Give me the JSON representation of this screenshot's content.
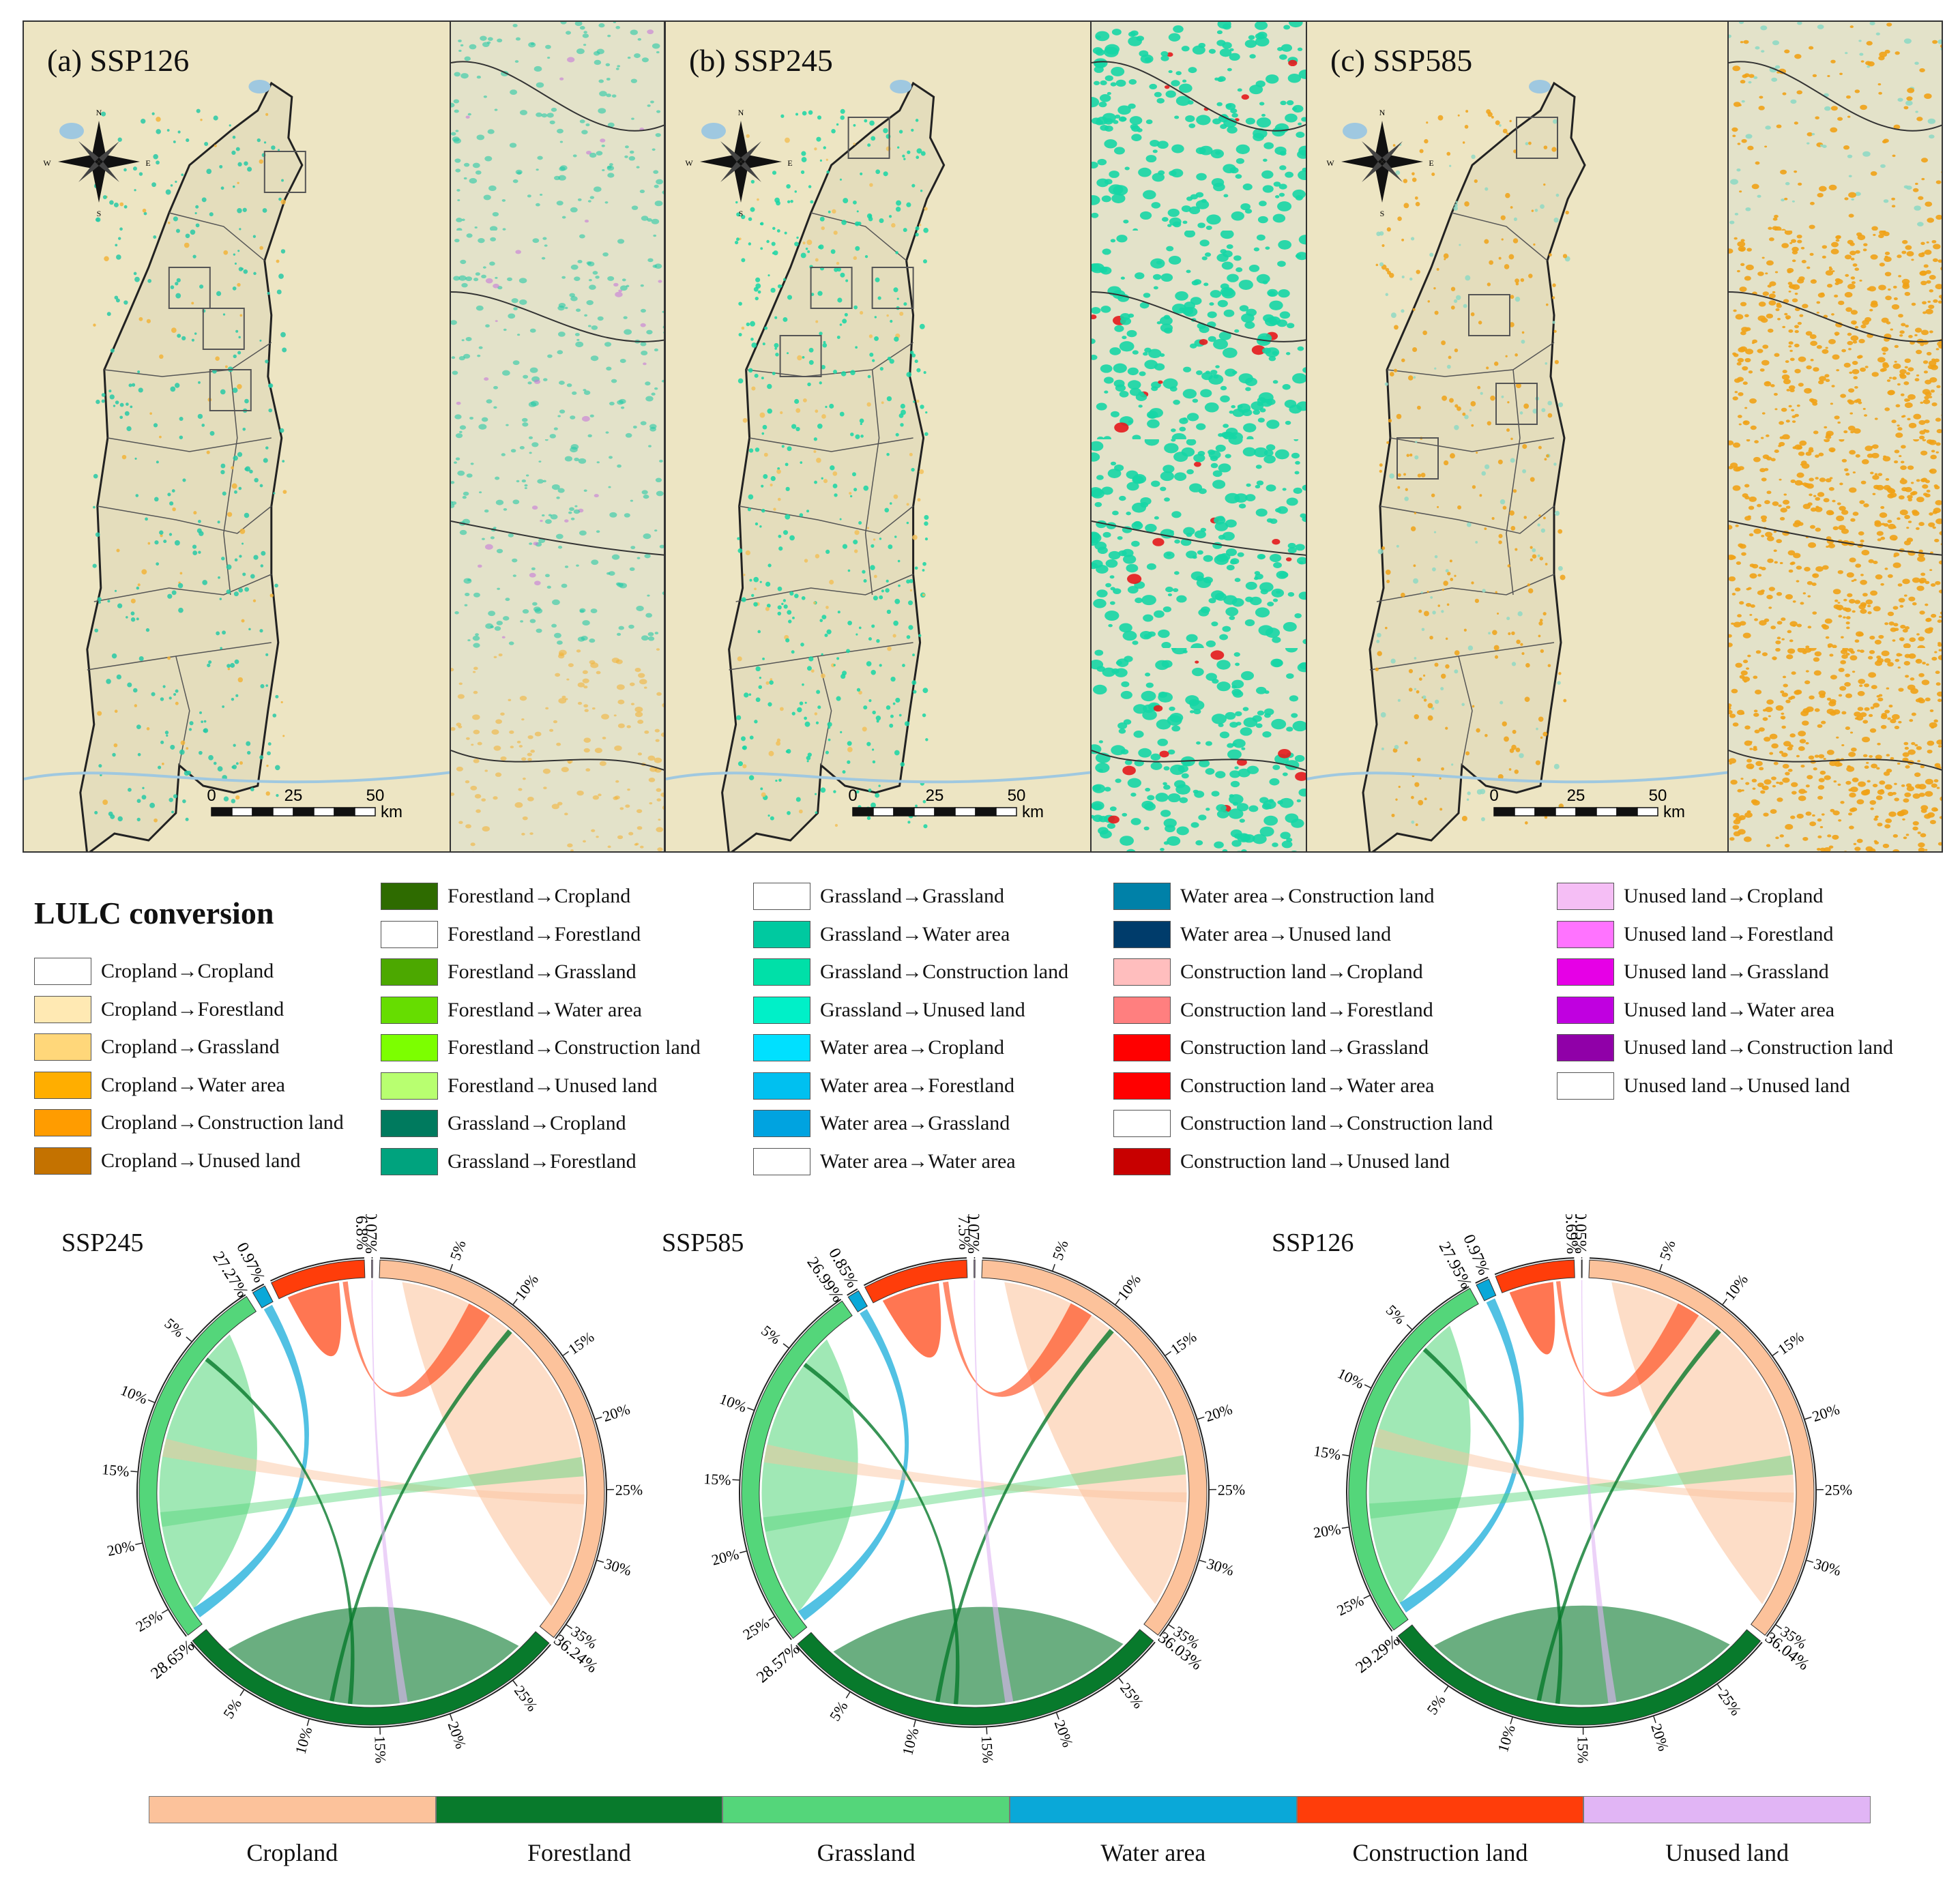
{
  "maps": [
    {
      "title": "(a) SSP126",
      "accent": "#27c9a6",
      "secondary": "#f2b43a",
      "hotspot": "#c77ad8"
    },
    {
      "title": "(b) SSP245",
      "accent": "#16d6a5",
      "secondary": "#f2c15a",
      "hotspot": "#e31a1c"
    },
    {
      "title": "(c) SSP585",
      "accent": "#8fd9c4",
      "secondary": "#f0a216",
      "hotspot": "#f0a216"
    }
  ],
  "scalebar": {
    "ticks": [
      "0",
      "25",
      "50"
    ],
    "unit": "km"
  },
  "compass": {
    "n": "N",
    "s": "S",
    "e": "E",
    "w": "W"
  },
  "legend": {
    "title": "LULC conversion",
    "columns": [
      [
        {
          "label": "Cropland→Cropland",
          "color": "#ffffff"
        },
        {
          "label": "Cropland→Forestland",
          "color": "#ffe9b3"
        },
        {
          "label": "Cropland→Grassland",
          "color": "#ffd77a"
        },
        {
          "label": "Cropland→Water area",
          "color": "#ffae00"
        },
        {
          "label": "Cropland→Construction land",
          "color": "#ff9c00"
        },
        {
          "label": "Cropland→Unused land",
          "color": "#c47200"
        }
      ],
      [
        {
          "label": "Forestland→Cropland",
          "color": "#2e6b00"
        },
        {
          "label": "Forestland→Forestland",
          "color": "#ffffff"
        },
        {
          "label": "Forestland→Grassland",
          "color": "#4ca800"
        },
        {
          "label": "Forestland→Water area",
          "color": "#66dd00"
        },
        {
          "label": "Forestland→Construction land",
          "color": "#7cff00"
        },
        {
          "label": "Forestland→Unused land",
          "color": "#b8ff70"
        },
        {
          "label": "Grassland→Cropland",
          "color": "#007a5e"
        },
        {
          "label": "Grassland→Forestland",
          "color": "#00a37e"
        }
      ],
      [
        {
          "label": "Grassland→Grassland",
          "color": "#ffffff"
        },
        {
          "label": "Grassland→Water area",
          "color": "#00c9a0"
        },
        {
          "label": "Grassland→Construction land",
          "color": "#00e0a8"
        },
        {
          "label": "Grassland→Unused land",
          "color": "#00f0c8"
        },
        {
          "label": "Water area→Cropland",
          "color": "#00e0ff"
        },
        {
          "label": "Water area→Forestland",
          "color": "#00c0f0"
        },
        {
          "label": "Water area→Grassland",
          "color": "#00a3e0"
        },
        {
          "label": "Water area→Water area",
          "color": "#ffffff"
        }
      ],
      [
        {
          "label": "Water area→Construction land",
          "color": "#0081a8"
        },
        {
          "label": "Water area→Unused land",
          "color": "#003c6b"
        },
        {
          "label": "Construction land→Cropland",
          "color": "#ffbebe"
        },
        {
          "label": "Construction land→Forestland",
          "color": "#ff7f7f"
        },
        {
          "label": "Construction land→Grassland",
          "color": "#ff0000"
        },
        {
          "label": "Construction land→Water area",
          "color": "#ff0000"
        },
        {
          "label": "Construction land→Construction land",
          "color": "#ffffff"
        },
        {
          "label": "Construction land→Unused land",
          "color": "#c80000"
        }
      ],
      [
        {
          "label": "Unused land→Cropland",
          "color": "#f5bef5"
        },
        {
          "label": "Unused land→Forestland",
          "color": "#ff73ff"
        },
        {
          "label": "Unused land→Grassland",
          "color": "#e600e6"
        },
        {
          "label": "Unused land→Water area",
          "color": "#c000e0"
        },
        {
          "label": "Unused land→Construction land",
          "color": "#9000a8"
        },
        {
          "label": "Unused land→Unused land",
          "color": "#ffffff"
        }
      ]
    ]
  },
  "categories": [
    {
      "name": "Cropland",
      "color": "#fcc29b"
    },
    {
      "name": "Forestland",
      "color": "#087a2c"
    },
    {
      "name": "Grassland",
      "color": "#54d67a"
    },
    {
      "name": "Water area",
      "color": "#0aa8d8"
    },
    {
      "name": "Construction land",
      "color": "#ff3d0a"
    },
    {
      "name": "Unused land",
      "color": "#e1b5f5"
    }
  ],
  "chart_data": [
    {
      "type": "chord",
      "title": "SSP245",
      "categories": [
        "Cropland",
        "Forestland",
        "Grassland",
        "Water area",
        "Construction land",
        "Unused land"
      ],
      "shares_percent": [
        36.24,
        28.65,
        27.27,
        0.97,
        6.8,
        0.07
      ],
      "labels": [
        "36.24%",
        "28.65%",
        "27.27%",
        "0.97%",
        "6.8%",
        "0.07%"
      ],
      "tick_labels": [
        "5%",
        "10%",
        "15%",
        "20%",
        "25%",
        "30%",
        "35%"
      ]
    },
    {
      "type": "chord",
      "title": "SSP585",
      "categories": [
        "Cropland",
        "Forestland",
        "Grassland",
        "Water area",
        "Construction land",
        "Unused land"
      ],
      "shares_percent": [
        36.03,
        28.57,
        26.99,
        0.85,
        7.5,
        0.07
      ],
      "labels": [
        "36.03%",
        "28.57%",
        "26.99%",
        "0.85%",
        "7.5%",
        "0.07%"
      ],
      "tick_labels": [
        "5%",
        "10%",
        "15%",
        "20%",
        "25%",
        "30%",
        "35%"
      ]
    },
    {
      "type": "chord",
      "title": "SSP126",
      "categories": [
        "Cropland",
        "Forestland",
        "Grassland",
        "Water area",
        "Construction land",
        "Unused land"
      ],
      "shares_percent": [
        36.04,
        29.29,
        27.95,
        0.97,
        5.69,
        0.05
      ],
      "labels": [
        "36.04%",
        "29.29%",
        "27.95%",
        "0.97%",
        "5.69%",
        "0.05%"
      ],
      "tick_labels": [
        "5%",
        "10%",
        "15%",
        "20%",
        "25%",
        "30%",
        "35%"
      ]
    }
  ]
}
